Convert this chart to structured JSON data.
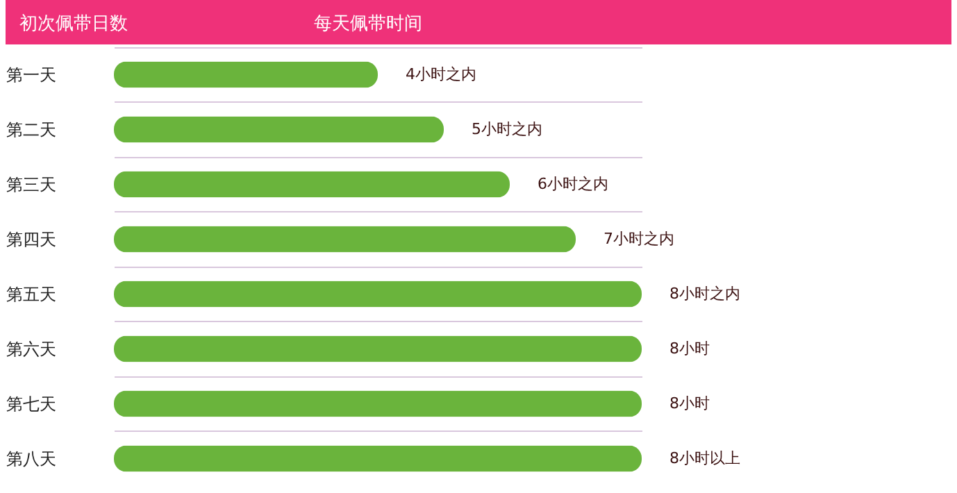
{
  "chart_data": {
    "type": "bar",
    "orientation": "horizontal",
    "tick_labels": "y",
    "xlabel": "每天佩带时间",
    "ylabel": "初次佩带日数",
    "categories": [
      "第一天",
      "第二天",
      "第三天",
      "第四天",
      "第五天",
      "第六天",
      "第七天",
      "第八天"
    ],
    "values": [
      4,
      5,
      6,
      7,
      8,
      8,
      8,
      8
    ],
    "value_labels": [
      "4小时之内",
      "5小时之内",
      "6小时之内",
      "7小时之内",
      "8小时之内",
      "8小时",
      "8小时",
      "8小时以上"
    ],
    "color": "#6ab43c",
    "grid": "y"
  }
}
